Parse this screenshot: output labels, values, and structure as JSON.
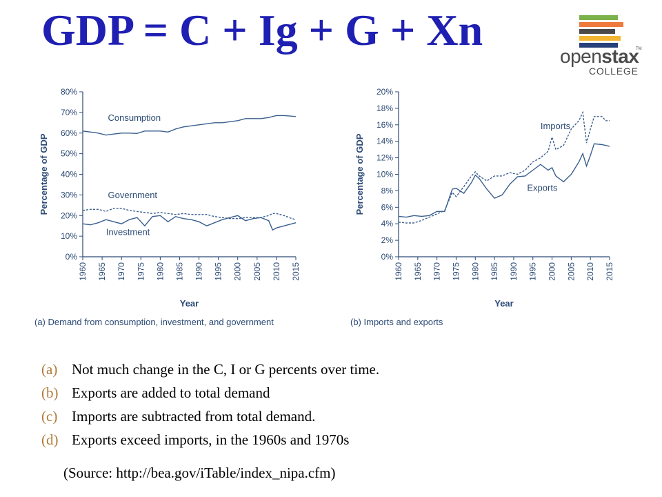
{
  "slide": {
    "title": "GDP = C + Ig + G + Xn",
    "logo": {
      "brand_prefix": "open",
      "brand_bold": "stax",
      "trademark": "TM",
      "subtitle": "COLLEGE"
    },
    "notes": [
      {
        "marker": "(a)",
        "text": "Not much change in the C, I or G percents over time."
      },
      {
        "marker": "(b)",
        "text": "Exports are added to total demand"
      },
      {
        "marker": "(c)",
        "text": "Imports are subtracted from total demand."
      },
      {
        "marker": "(d)",
        "text": "Exports exceed imports, in the 1960s and 1970s"
      }
    ],
    "source": "(Source: http://bea.gov/iTable/index_nipa.cfm)"
  },
  "colors": {
    "title": "#1f1fb3",
    "axis": "#2c4a75",
    "series": "#3a5f8f",
    "marker": "#b07a38",
    "logo_bars": [
      "#7bb24a",
      "#ef7a3c",
      "#4a4a4a",
      "#f2b632",
      "#27407a"
    ]
  },
  "chart_data": [
    {
      "type": "line",
      "caption": "(a) Demand from consumption, investment, and government",
      "xlabel": "Year",
      "ylabel": "Percentage of GDP",
      "xlim": [
        1960,
        2015
      ],
      "ylim": [
        0,
        80
      ],
      "x_ticks": [
        "1960",
        "1965",
        "1970",
        "1975",
        "1980",
        "1985",
        "1990",
        "1995",
        "2000",
        "2005",
        "2010",
        "2015"
      ],
      "y_ticks": [
        "0%",
        "10%",
        "20%",
        "30%",
        "40%",
        "50%",
        "60%",
        "70%",
        "80%"
      ],
      "x": [
        1960,
        1962,
        1964,
        1966,
        1968,
        1970,
        1972,
        1974,
        1976,
        1978,
        1980,
        1982,
        1984,
        1986,
        1988,
        1990,
        1992,
        1994,
        1996,
        1998,
        2000,
        2002,
        2004,
        2006,
        2008,
        2009,
        2010,
        2012,
        2014,
        2015
      ],
      "series": [
        {
          "name": "Consumption",
          "style": "solid",
          "label_at": [
            1966.5,
            66
          ],
          "values": [
            61,
            60.5,
            60,
            59,
            59.5,
            60,
            60,
            59.8,
            61,
            61,
            61,
            60.5,
            62,
            63,
            63.5,
            64,
            64.5,
            65,
            65,
            65.5,
            66,
            67,
            67,
            67,
            67.5,
            68,
            68.5,
            68.5,
            68.2,
            68
          ]
        },
        {
          "name": "Government",
          "style": "dashed",
          "label_at": [
            1966.5,
            28.5
          ],
          "values": [
            22.5,
            23,
            23,
            22,
            23.5,
            23.5,
            22.5,
            22,
            21.5,
            21,
            21.5,
            21,
            20.5,
            21,
            20.5,
            20.5,
            20.5,
            19.5,
            19,
            18.5,
            18.5,
            19,
            19,
            19,
            20,
            21,
            21,
            20,
            18.5,
            18
          ]
        },
        {
          "name": "Investment",
          "style": "solid",
          "label_at": [
            1966,
            10.5
          ],
          "values": [
            16,
            15.5,
            16.5,
            18,
            17,
            16,
            18,
            19,
            15,
            19.5,
            20,
            17,
            19.5,
            18.5,
            18,
            17,
            15,
            16.5,
            18,
            19,
            20,
            17.5,
            18.5,
            19,
            17.5,
            13,
            14,
            15,
            16,
            16.5
          ]
        }
      ]
    },
    {
      "type": "line",
      "caption": "(b) Imports and exports",
      "xlabel": "Year",
      "ylabel": "Percentage of GDP",
      "xlim": [
        1960,
        2015
      ],
      "ylim": [
        0,
        20
      ],
      "x_ticks": [
        "1960",
        "1965",
        "1970",
        "1975",
        "1980",
        "1985",
        "1990",
        "1995",
        "2000",
        "2005",
        "2010",
        "2015"
      ],
      "y_ticks": [
        "0%",
        "2%",
        "4%",
        "6%",
        "8%",
        "10%",
        "12%",
        "14%",
        "16%",
        "18%",
        "20%"
      ],
      "x": [
        1960,
        1962,
        1964,
        1966,
        1968,
        1970,
        1972,
        1974,
        1975,
        1977,
        1979,
        1980,
        1981,
        1983,
        1985,
        1987,
        1989,
        1991,
        1993,
        1995,
        1997,
        1999,
        2000,
        2001,
        2003,
        2005,
        2007,
        2008,
        2009,
        2010,
        2011,
        2013,
        2014,
        2015
      ],
      "series": [
        {
          "name": "Imports",
          "style": "dashed",
          "label_at": [
            1997,
            15.5
          ],
          "values": [
            4.2,
            4.1,
            4.1,
            4.4,
            4.8,
            5.2,
            5.6,
            7.8,
            7.3,
            8.5,
            9.8,
            10.3,
            9.8,
            9.2,
            9.8,
            9.8,
            10.2,
            10,
            10.5,
            11.5,
            12,
            12.8,
            14.5,
            13,
            13.5,
            15.5,
            16.5,
            17.5,
            13.8,
            15.5,
            17,
            17,
            16.5,
            16.5
          ]
        },
        {
          "name": "Exports",
          "style": "solid",
          "label_at": [
            1993.5,
            8
          ],
          "values": [
            4.9,
            4.8,
            5,
            4.9,
            5,
            5.5,
            5.5,
            8.2,
            8.3,
            7.7,
            9,
            9.9,
            9.5,
            8.2,
            7.1,
            7.5,
            8.8,
            9.7,
            9.8,
            10.5,
            11.2,
            10.5,
            10.8,
            9.8,
            9.1,
            10,
            11.5,
            12.5,
            11,
            12.3,
            13.7,
            13.6,
            13.5,
            13.4
          ]
        }
      ]
    }
  ]
}
